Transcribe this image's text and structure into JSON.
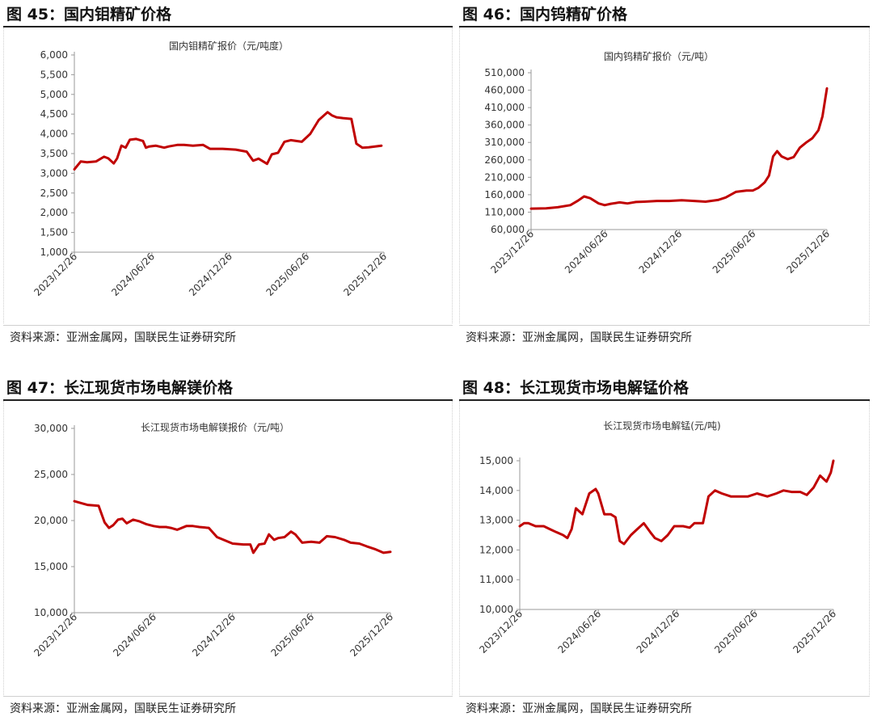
{
  "colors": {
    "series": "#c00000",
    "axis": "#9a9a9a"
  },
  "panels": [
    {
      "figure_title": "图 45：国内钼精矿价格",
      "source": "资料来源：亚洲金属网，国联民生证券研究所"
    },
    {
      "figure_title": "图 46：国内钨精矿价格",
      "source": "资料来源：亚洲金属网，国联民生证券研究所"
    },
    {
      "figure_title": "图 47：长江现货市场电解镁价格",
      "source": "资料来源：亚洲金属网，国联民生证券研究所"
    },
    {
      "figure_title": "图 48：长江现货市场电解锰价格",
      "source": "资料来源：亚洲金属网，国联民生证券研究所"
    }
  ],
  "chart_data": [
    {
      "type": "line",
      "title": "国内钼精矿报价（元/吨度）",
      "x_ticks": [
        "2023/12/26",
        "2024/06/26",
        "2024/12/26",
        "2025/06/26",
        "2025/12/26"
      ],
      "y_ticks": [
        "6,000",
        "5,500",
        "5,000",
        "4,500",
        "4,000",
        "3,500",
        "3,000",
        "2,500",
        "2,000",
        "1,500",
        "1,000"
      ],
      "ylim": [
        1000,
        6000
      ],
      "grid": false,
      "series": [
        {
          "x": [
            "2023-12-26",
            "2024-01-10",
            "2024-01-25",
            "2024-02-15",
            "2024-03-05",
            "2024-03-15",
            "2024-03-28",
            "2024-04-05",
            "2024-04-15",
            "2024-04-25",
            "2024-05-05",
            "2024-05-20",
            "2024-06-05",
            "2024-06-12",
            "2024-06-20",
            "2024-07-05",
            "2024-07-25",
            "2024-08-05",
            "2024-08-25",
            "2024-09-10",
            "2024-10-01",
            "2024-10-25",
            "2024-11-10",
            "2024-12-10",
            "2025-01-10",
            "2025-02-05",
            "2025-02-20",
            "2025-03-05",
            "2025-03-25",
            "2025-04-05",
            "2025-04-20",
            "2025-05-05",
            "2025-05-20",
            "2025-06-15",
            "2025-07-05",
            "2025-07-25",
            "2025-08-15",
            "2025-08-25",
            "2025-09-05",
            "2025-09-20",
            "2025-10-10",
            "2025-10-22",
            "2025-11-05",
            "2025-11-20",
            "2025-12-05",
            "2025-12-20"
          ],
          "y": [
            3100,
            3300,
            3280,
            3300,
            3420,
            3380,
            3250,
            3380,
            3700,
            3650,
            3850,
            3870,
            3820,
            3650,
            3680,
            3700,
            3650,
            3680,
            3720,
            3720,
            3700,
            3720,
            3620,
            3620,
            3600,
            3550,
            3320,
            3370,
            3240,
            3480,
            3520,
            3800,
            3840,
            3800,
            4000,
            4350,
            4550,
            4470,
            4420,
            4400,
            4380,
            3750,
            3650,
            3660,
            3680,
            3700
          ]
        }
      ]
    },
    {
      "type": "line",
      "title": "国内钨精矿报价（元/吨）",
      "x_ticks": [
        "2023/12/26",
        "2024/06/26",
        "2024/12/26",
        "2025/06/26",
        "2025/12/26"
      ],
      "y_ticks": [
        "510,000",
        "460,000",
        "410,000",
        "360,000",
        "310,000",
        "260,000",
        "210,000",
        "160,000",
        "110,000",
        "60,000"
      ],
      "ylim": [
        60000,
        510000
      ],
      "grid": false,
      "series": [
        {
          "x": [
            "2023-12-26",
            "2024-02-01",
            "2024-03-01",
            "2024-04-01",
            "2024-04-20",
            "2024-05-05",
            "2024-05-20",
            "2024-06-10",
            "2024-06-25",
            "2024-07-10",
            "2024-08-01",
            "2024-08-20",
            "2024-09-10",
            "2024-10-01",
            "2024-11-01",
            "2024-12-01",
            "2025-01-01",
            "2025-02-01",
            "2025-03-01",
            "2025-04-01",
            "2025-04-20",
            "2025-05-15",
            "2025-06-10",
            "2025-06-26",
            "2025-07-10",
            "2025-07-25",
            "2025-08-05",
            "2025-08-15",
            "2025-08-25",
            "2025-09-05",
            "2025-09-20",
            "2025-10-05",
            "2025-10-20",
            "2025-11-05",
            "2025-11-20",
            "2025-12-05",
            "2025-12-15",
            "2025-12-26"
          ],
          "y": [
            120000,
            121000,
            124000,
            130000,
            143000,
            155000,
            150000,
            135000,
            130000,
            134000,
            138000,
            135000,
            139000,
            140000,
            142000,
            142000,
            144000,
            142000,
            140000,
            145000,
            152000,
            168000,
            172000,
            172000,
            180000,
            195000,
            215000,
            270000,
            285000,
            270000,
            262000,
            268000,
            295000,
            310000,
            322000,
            345000,
            385000,
            465000
          ]
        }
      ]
    },
    {
      "type": "line",
      "title": "长江现货市场电解镁报价（元/吨）",
      "x_ticks": [
        "2023/12/26",
        "2024/06/26",
        "2024/12/26",
        "2025/06/26",
        "2025/12/26"
      ],
      "y_ticks": [
        "30,000",
        "25,000",
        "20,000",
        "15,000",
        "10,000"
      ],
      "ylim": [
        10000,
        30000
      ],
      "grid": false,
      "series": [
        {
          "x": [
            "2023-12-26",
            "2024-01-10",
            "2024-01-25",
            "2024-02-20",
            "2024-03-05",
            "2024-03-15",
            "2024-03-25",
            "2024-04-05",
            "2024-04-15",
            "2024-04-25",
            "2024-05-10",
            "2024-05-25",
            "2024-06-10",
            "2024-06-26",
            "2024-07-10",
            "2024-07-25",
            "2024-08-05",
            "2024-08-20",
            "2024-09-10",
            "2024-09-25",
            "2024-10-10",
            "2024-11-01",
            "2024-11-20",
            "2024-12-26",
            "2025-01-20",
            "2025-02-05",
            "2025-02-12",
            "2025-02-25",
            "2025-03-10",
            "2025-03-20",
            "2025-04-01",
            "2025-04-10",
            "2025-04-25",
            "2025-05-10",
            "2025-05-20",
            "2025-06-05",
            "2025-06-26",
            "2025-07-15",
            "2025-08-01",
            "2025-08-20",
            "2025-09-10",
            "2025-09-25",
            "2025-10-15",
            "2025-11-01",
            "2025-11-20",
            "2025-12-10",
            "2025-12-26"
          ],
          "y": [
            22100,
            21900,
            21700,
            21600,
            19800,
            19200,
            19500,
            20100,
            20200,
            19700,
            20100,
            19900,
            19600,
            19400,
            19300,
            19300,
            19200,
            19000,
            19400,
            19400,
            19300,
            19200,
            18200,
            17500,
            17400,
            17400,
            16500,
            17400,
            17500,
            18500,
            17900,
            18100,
            18200,
            18800,
            18500,
            17600,
            17700,
            17600,
            18300,
            18200,
            17900,
            17600,
            17500,
            17200,
            16900,
            16500,
            16600
          ]
        }
      ]
    },
    {
      "type": "line",
      "title": "长江现货市场电解锰(元/吨)",
      "x_ticks": [
        "2023/12/26",
        "2024/06/26",
        "2024/12/26",
        "2025/06/26",
        "2025/12/26"
      ],
      "y_ticks": [
        "15,000",
        "14,000",
        "13,000",
        "12,000",
        "11,000",
        "10,000"
      ],
      "ylim": [
        10000,
        15000
      ],
      "grid": false,
      "series": [
        {
          "x": [
            "2023-12-26",
            "2024-01-05",
            "2024-01-15",
            "2024-02-01",
            "2024-02-20",
            "2024-03-05",
            "2024-03-20",
            "2024-04-05",
            "2024-04-15",
            "2024-04-25",
            "2024-05-05",
            "2024-05-20",
            "2024-06-05",
            "2024-06-20",
            "2024-06-26",
            "2024-07-10",
            "2024-07-25",
            "2024-08-05",
            "2024-08-15",
            "2024-08-25",
            "2024-09-10",
            "2024-09-25",
            "2024-10-10",
            "2024-10-25",
            "2024-11-05",
            "2024-11-20",
            "2024-12-05",
            "2024-12-20",
            "2025-01-10",
            "2025-01-25",
            "2025-02-05",
            "2025-02-25",
            "2025-03-10",
            "2025-03-25",
            "2025-04-10",
            "2025-05-01",
            "2025-05-20",
            "2025-06-10",
            "2025-07-01",
            "2025-07-25",
            "2025-08-15",
            "2025-09-01",
            "2025-09-20",
            "2025-10-10",
            "2025-10-25",
            "2025-11-10",
            "2025-11-25",
            "2025-12-10",
            "2025-12-20",
            "2025-12-26"
          ],
          "y": [
            12800,
            12900,
            12900,
            12800,
            12800,
            12700,
            12600,
            12500,
            12400,
            12700,
            13400,
            13200,
            13900,
            14050,
            13900,
            13200,
            13200,
            13100,
            12300,
            12200,
            12500,
            12700,
            12900,
            12600,
            12400,
            12300,
            12500,
            12800,
            12800,
            12750,
            12900,
            12900,
            13800,
            14000,
            13900,
            13800,
            13800,
            13800,
            13900,
            13800,
            13900,
            14000,
            13950,
            13950,
            13850,
            14100,
            14500,
            14300,
            14600,
            15000
          ]
        }
      ]
    }
  ]
}
